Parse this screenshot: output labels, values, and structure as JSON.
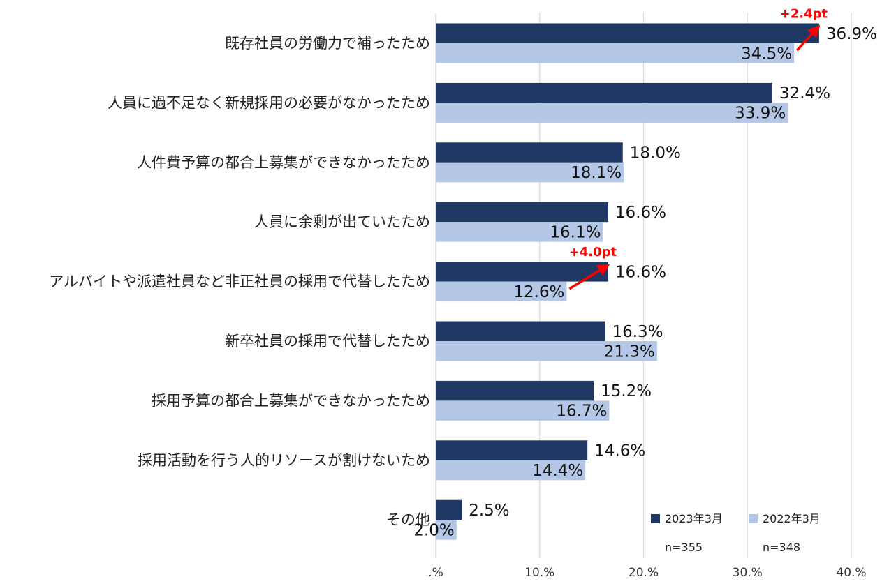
{
  "chart_data": {
    "type": "bar",
    "orientation": "horizontal",
    "categories": [
      "既存社員の労働力で補ったため",
      "人員に過不足なく新規採用の必要がなかったため",
      "人件費予算の都合上募集ができなかったため",
      "人員に余剰が出ていたため",
      "アルバイトや派遣社員など非正社員の採用で代替したため",
      "新卒社員の採用で代替したため",
      "採用予算の都合上募集ができなかったため",
      "採用活動を行う人的リソースが割けないため",
      "その他"
    ],
    "series": [
      {
        "name": "2023年3月",
        "n": "n=355",
        "color": "#203864",
        "values": [
          36.9,
          32.4,
          18.0,
          16.6,
          16.6,
          16.3,
          15.2,
          14.6,
          2.5
        ],
        "labels": [
          "36.9%",
          "32.4%",
          "18.0%",
          "16.6%",
          "16.6%",
          "16.3%",
          "15.2%",
          "14.6%",
          "2.5%"
        ]
      },
      {
        "name": "2022年3月",
        "n": "n=348",
        "color": "#B4C7E7",
        "values": [
          34.5,
          33.9,
          18.1,
          16.1,
          12.6,
          21.3,
          16.7,
          14.4,
          2.0
        ],
        "labels": [
          "34.5%",
          "33.9%",
          "18.1%",
          "16.1%",
          "12.6%",
          "21.3%",
          "16.7%",
          "14.4%",
          "2.0%"
        ]
      }
    ],
    "xlim": [
      0,
      40
    ],
    "xticks": [
      {
        "value": 0,
        "label": ".%"
      },
      {
        "value": 10,
        "label": "10.%"
      },
      {
        "value": 20,
        "label": "20.%"
      },
      {
        "value": 30,
        "label": "30.%"
      },
      {
        "value": 40,
        "label": "40.%"
      }
    ],
    "grid": "vertical",
    "legend_position": "bottom-right",
    "annotations": [
      {
        "category_index": 0,
        "text": "+2.4pt",
        "color": "#FF0000"
      },
      {
        "category_index": 4,
        "text": "+4.0pt",
        "color": "#FF0000"
      }
    ],
    "title": "",
    "xlabel": "",
    "ylabel": ""
  }
}
